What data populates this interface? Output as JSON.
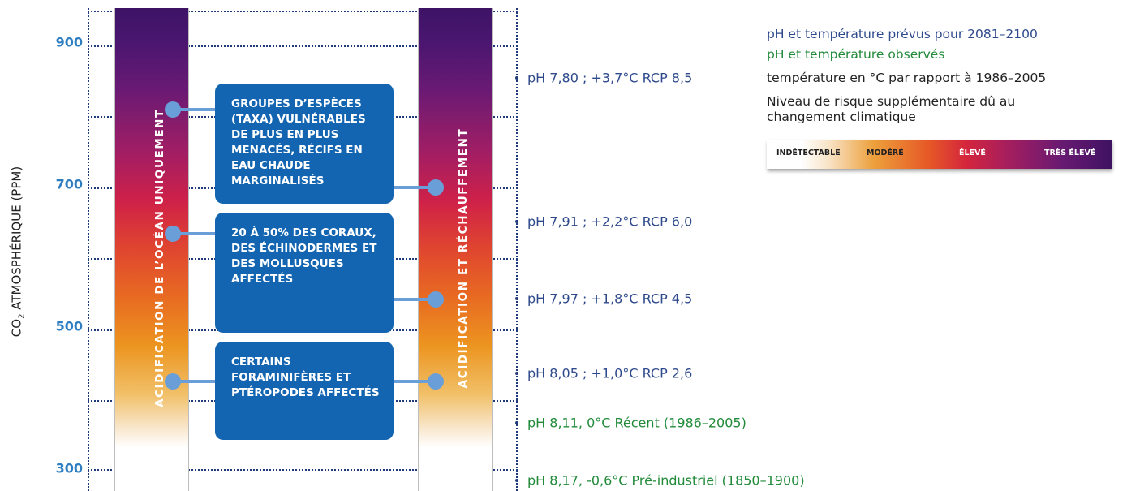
{
  "y_axis": {
    "label_prefix": "CO",
    "label_sub": "2",
    "label_suffix": " ATMOSPHÉRIQUE (PPM)",
    "ticks": [
      "900",
      "700",
      "500",
      "300"
    ]
  },
  "columns": {
    "left": "ACIDIFICATION DE L’OCÉAN UNIQUEMENT",
    "right": "ACIDIFICATION ET RÉCHAUFFEMENT"
  },
  "impacts": [
    "GROUPES D’ESPÈCES (TAXA) VULNÉRABLES DE PLUS EN PLUS MENACÉS, RÉCIFS EN EAU CHAUDE MARGINALISÉS",
    "20 À 50% DES CORAUX, DES ÉCHINODERMES ET DES MOLLUSQUES AFFECTÉS",
    "CERTAINS FORAMINIFÈRES ET PTÉROPODES AFFECTÉS"
  ],
  "scenarios": [
    "pH 7,80 ; +3,7°C RCP 8,5",
    "pH 7,91 ; +2,2°C RCP 6,0",
    "pH 7,97 ; +1,8°C RCP 4,5",
    "pH 8,05 ; +1,0°C RCP 2,6",
    "pH 8,11, 0°C Récent (1986–2005)",
    "pH 8,17, -0,6°C Pré-industriel (1850–1900)"
  ],
  "legend": {
    "projected": "pH et température prévus pour 2081–2100",
    "observed": "pH et température observés",
    "temp_ref": "température en °C par rapport à 1986–2005",
    "risk_title_line1": "Niveau de risque supplémentaire dû au",
    "risk_title_line2": "changement climatique",
    "scale": [
      "INDÉTECTABLE",
      "MODÉRÉ",
      "ÉLEVÉ",
      "TRÈS ÉLEVÉ"
    ]
  },
  "colors": {
    "projected_text": "#2e4a8c",
    "observed_text": "#228b3a",
    "impact_box": "#1465b1",
    "axis_ticks": "#2d7dc0"
  }
}
